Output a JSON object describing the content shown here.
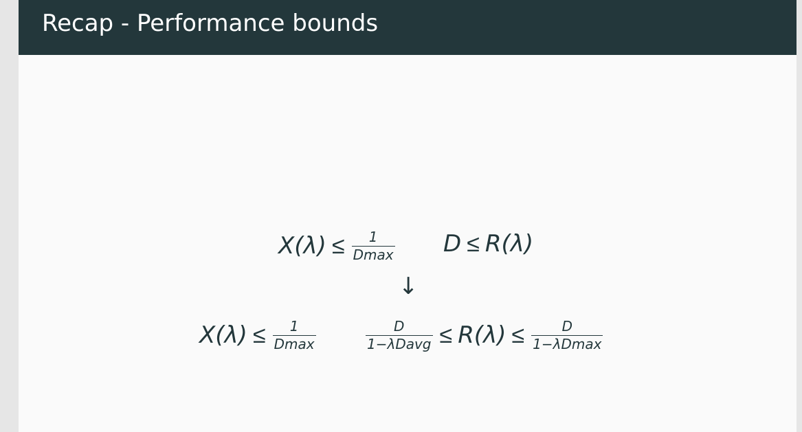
{
  "slide": {
    "title": "Recap - Performance bounds"
  },
  "row1": {
    "left": {
      "lhs": "X(λ)",
      "rel": "≤",
      "num": "1",
      "den": "Dmax"
    },
    "right": {
      "lhs": "D",
      "rel": "≤",
      "rhs": "R(λ)"
    }
  },
  "arrow": "↓",
  "row2": {
    "left": {
      "lhs": "X(λ)",
      "rel": "≤",
      "num": "1",
      "den": "Dmax"
    },
    "right": {
      "num1": "D",
      "den1": "1−λDavg",
      "rel1": "≤",
      "mid": "R(λ)",
      "rel2": "≤",
      "num2": "D",
      "den2": "1−λDmax"
    }
  }
}
